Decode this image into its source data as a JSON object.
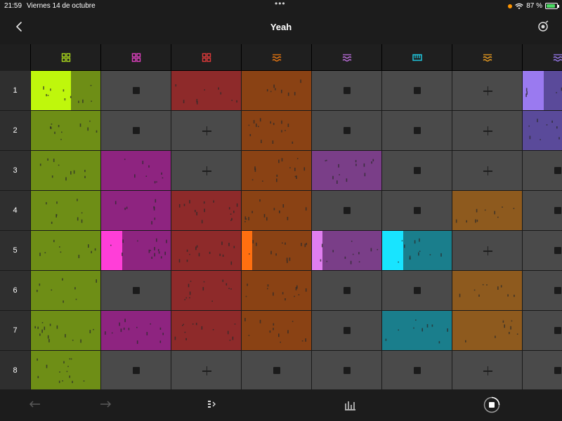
{
  "status_bar": {
    "time": "21:59",
    "date": "Viernes 14 de octubre",
    "battery": "87 %",
    "battery_level": 0.87
  },
  "app": {
    "title": "Yeah"
  },
  "icons": {
    "back": "chevron-left-icon",
    "record": "record-icon",
    "undo": "undo-icon",
    "redo": "redo-icon",
    "launch": "launch-icon",
    "mixer": "mixer-icon",
    "stop": "stop-all-icon"
  },
  "rows": [
    "1",
    "2",
    "3",
    "4",
    "5",
    "6",
    "7",
    "8"
  ],
  "tracks": [
    {
      "icon": "drum-grid-icon",
      "color": "#a8d51c"
    },
    {
      "icon": "drum-grid-icon",
      "color": "#e040c0"
    },
    {
      "icon": "drum-grid-icon",
      "color": "#e03a3a"
    },
    {
      "icon": "wave-icon",
      "color": "#f07a10"
    },
    {
      "icon": "wave-icon",
      "color": "#c070e0"
    },
    {
      "icon": "keyboard-icon",
      "color": "#20d0e8"
    },
    {
      "icon": "wave-icon",
      "color": "#f0a020"
    },
    {
      "icon": "wave-icon",
      "color": "#9a7af0"
    }
  ],
  "grid": [
    [
      "clip-playing",
      "stop",
      "clip",
      "clip",
      "stop",
      "stop",
      "plus",
      "clip-playing"
    ],
    [
      "clip",
      "stop",
      "plus",
      "clip",
      "stop",
      "stop",
      "plus",
      "clip"
    ],
    [
      "clip",
      "clip",
      "plus",
      "clip",
      "clip",
      "stop",
      "plus",
      "stop"
    ],
    [
      "clip",
      "clip",
      "clip",
      "clip",
      "stop",
      "stop",
      "clip",
      "stop"
    ],
    [
      "clip",
      "clip-playing",
      "clip",
      "clip-playing",
      "clip-playing",
      "clip-playing",
      "plus",
      "stop"
    ],
    [
      "clip",
      "stop",
      "clip",
      "clip",
      "stop",
      "stop",
      "clip",
      "stop"
    ],
    [
      "clip",
      "clip",
      "clip",
      "clip",
      "stop",
      "clip",
      "clip",
      "stop"
    ],
    [
      "clip",
      "stop",
      "plus",
      "stop",
      "stop",
      "stop",
      "plus",
      "stop"
    ]
  ],
  "clip_colors": [
    "#6e8e16",
    "#8e2480",
    "#8e2a2a",
    "#8a4214",
    "#7a3e88",
    "#1a7e8c",
    "#8e5a1e",
    "#5a4a9a"
  ],
  "clip_playing_colors": [
    "#bff70c",
    "#ff3ed8",
    "#e03a3a",
    "#ff6f10",
    "#e07ef0",
    "#18e4ff",
    "#f0a020",
    "#9a7af0"
  ],
  "play_progress": [
    0.58,
    0.3,
    0,
    0.15,
    0.15,
    0.3,
    0,
    0.3
  ]
}
